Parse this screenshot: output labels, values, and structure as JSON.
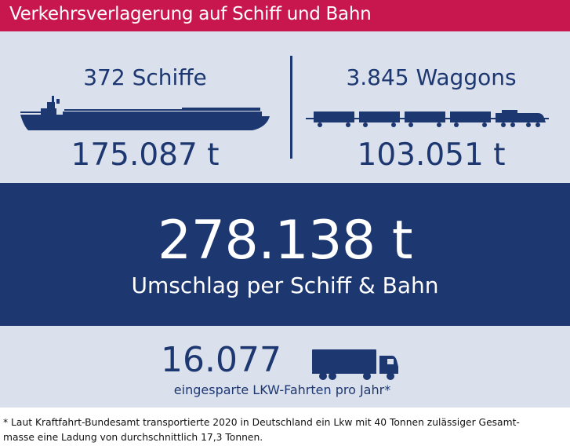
{
  "title": "Verkehrsverlagerung auf Schiff und Bahn",
  "ships": {
    "count_label": "372 Schiffe",
    "tons": "175.087 t",
    "icon": "ship-icon"
  },
  "trains": {
    "count_label": "3.845 Waggons",
    "tons": "103.051 t",
    "icon": "train-icon"
  },
  "total": {
    "value": "278.138 t",
    "label": "Umschlag per Schiff & Bahn"
  },
  "trucks": {
    "value": "16.077",
    "label": "eingesparte LKW-Fahrten pro Jahr*",
    "icon": "truck-icon"
  },
  "footnote": {
    "line1": "* Laut Kraftfahrt-Bundesamt transportierte 2020 in Deutschland ein Lkw mit 40 Tonnen zulässiger Gesamt-",
    "line2": "masse eine Ladung von durchschnittlich 17,3 Tonnen."
  },
  "colors": {
    "title_bar": "#c8174f",
    "light_panel": "#dbe0ed",
    "navy": "#1d3770",
    "text_light": "#ffffff"
  }
}
